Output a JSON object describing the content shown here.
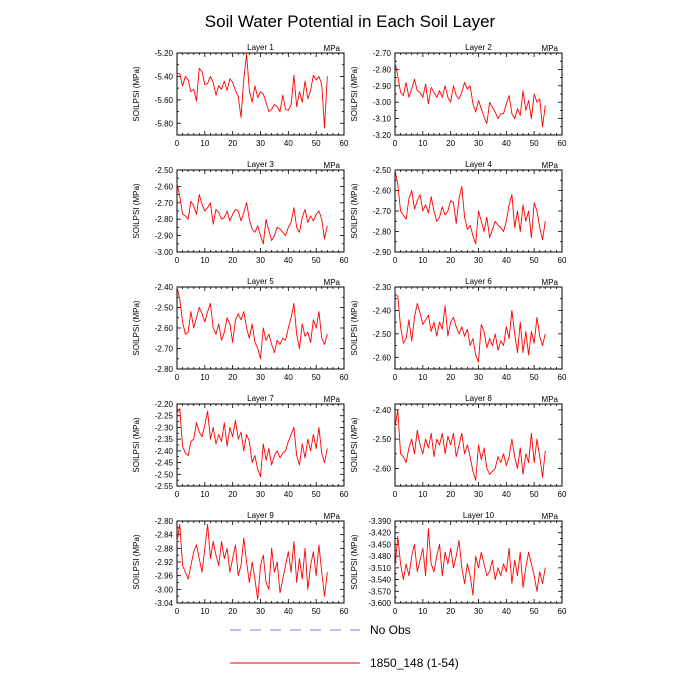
{
  "title": "Soil Water Potential in Each Soil Layer",
  "legend": {
    "items": [
      {
        "label": "No Obs",
        "color": "#8080e0",
        "dashed": true
      },
      {
        "label": "1850_148 (1-54)",
        "color": "#ff0000",
        "dashed": false
      }
    ]
  },
  "colors": {
    "series": "#ff0000",
    "noobs": "#8080e0"
  },
  "chart_data": [
    {
      "type": "line",
      "title": "Layer 1",
      "units": "MPa",
      "ylabel": "SOILPSI  (MPa)",
      "xlim": [
        0,
        60
      ],
      "xticks": [
        0,
        10,
        20,
        30,
        40,
        50,
        60
      ],
      "ylim": [
        -5.9,
        -5.2
      ],
      "yticks": [
        -5.2,
        -5.4,
        -5.6,
        -5.8
      ],
      "ytick_labels": [
        "-5.20",
        "-5.40",
        "-5.60",
        "-5.80"
      ],
      "series": [
        {
          "name": "1850_148 (1-54)",
          "values": [
            -5.37,
            -5.38,
            -5.48,
            -5.4,
            -5.43,
            -5.53,
            -5.51,
            -5.61,
            -5.33,
            -5.36,
            -5.47,
            -5.46,
            -5.4,
            -5.45,
            -5.56,
            -5.48,
            -5.51,
            -5.44,
            -5.52,
            -5.42,
            -5.45,
            -5.52,
            -5.57,
            -5.75,
            -5.42,
            -5.21,
            -5.52,
            -5.62,
            -5.48,
            -5.58,
            -5.53,
            -5.55,
            -5.62,
            -5.7,
            -5.68,
            -5.64,
            -5.66,
            -5.7,
            -5.56,
            -5.68,
            -5.69,
            -5.64,
            -5.39,
            -5.66,
            -5.53,
            -5.62,
            -5.44,
            -5.59,
            -5.52,
            -5.39,
            -5.43,
            -5.4,
            -5.47,
            -5.84,
            -5.4
          ]
        }
      ]
    },
    {
      "type": "line",
      "title": "Layer 2",
      "units": "MPa",
      "ylabel": "SOILPSI  (MPa)",
      "xlim": [
        0,
        60
      ],
      "xticks": [
        0,
        10,
        20,
        30,
        40,
        50,
        60
      ],
      "ylim": [
        -3.2,
        -2.7
      ],
      "yticks": [
        -2.7,
        -2.8,
        -2.9,
        -3.0,
        -3.1,
        -3.2
      ],
      "ytick_labels": [
        "-2.70",
        "-2.80",
        "-2.90",
        "-3.00",
        "-3.10",
        "-3.20"
      ],
      "series": [
        {
          "name": "1850_148 (1-54)",
          "values": [
            -2.76,
            -2.84,
            -2.94,
            -2.96,
            -2.88,
            -2.97,
            -2.92,
            -2.86,
            -2.93,
            -2.94,
            -2.97,
            -2.89,
            -3.01,
            -2.91,
            -2.94,
            -2.97,
            -2.93,
            -2.97,
            -2.9,
            -2.97,
            -3.0,
            -2.9,
            -2.96,
            -2.98,
            -2.94,
            -2.88,
            -2.92,
            -2.9,
            -3.01,
            -3.06,
            -2.99,
            -3.04,
            -3.09,
            -3.13,
            -3.0,
            -3.03,
            -3.06,
            -3.1,
            -3.07,
            -3.07,
            -3.01,
            -2.96,
            -3.07,
            -3.1,
            -3.04,
            -3.08,
            -2.93,
            -3.05,
            -2.99,
            -3.1,
            -2.95,
            -3.0,
            -2.98,
            -3.15,
            -3.02
          ]
        }
      ]
    },
    {
      "type": "line",
      "title": "Layer 3",
      "units": "MPa",
      "ylabel": "SOILPSI  (MPa)",
      "xlim": [
        0,
        60
      ],
      "xticks": [
        0,
        10,
        20,
        30,
        40,
        50,
        60
      ],
      "ylim": [
        -3.0,
        -2.5
      ],
      "yticks": [
        -2.5,
        -2.6,
        -2.7,
        -2.8,
        -2.9,
        -3.0
      ],
      "ytick_labels": [
        "-2.50",
        "-2.60",
        "-2.70",
        "-2.80",
        "-2.90",
        "-3.00"
      ],
      "series": [
        {
          "name": "1850_148 (1-54)",
          "values": [
            -2.58,
            -2.66,
            -2.77,
            -2.78,
            -2.8,
            -2.69,
            -2.72,
            -2.77,
            -2.65,
            -2.71,
            -2.75,
            -2.73,
            -2.7,
            -2.83,
            -2.74,
            -2.76,
            -2.8,
            -2.79,
            -2.75,
            -2.81,
            -2.77,
            -2.74,
            -2.75,
            -2.81,
            -2.76,
            -2.7,
            -2.8,
            -2.86,
            -2.88,
            -2.84,
            -2.9,
            -2.95,
            -2.8,
            -2.87,
            -2.93,
            -2.9,
            -2.85,
            -2.86,
            -2.88,
            -2.9,
            -2.85,
            -2.82,
            -2.73,
            -2.85,
            -2.88,
            -2.79,
            -2.74,
            -2.82,
            -2.78,
            -2.81,
            -2.77,
            -2.75,
            -2.8,
            -2.92,
            -2.84
          ]
        }
      ]
    },
    {
      "type": "line",
      "title": "Layer 4",
      "units": "MPa",
      "ylabel": "SOILPSI  (MPa)",
      "xlim": [
        0,
        60
      ],
      "xticks": [
        0,
        10,
        20,
        30,
        40,
        50,
        60
      ],
      "ylim": [
        -2.9,
        -2.5
      ],
      "yticks": [
        -2.5,
        -2.6,
        -2.7,
        -2.8,
        -2.9
      ],
      "ytick_labels": [
        "-2.50",
        "-2.60",
        "-2.70",
        "-2.80",
        "-2.90"
      ],
      "series": [
        {
          "name": "1850_148 (1-54)",
          "values": [
            -2.5,
            -2.57,
            -2.7,
            -2.72,
            -2.74,
            -2.64,
            -2.6,
            -2.69,
            -2.65,
            -2.62,
            -2.7,
            -2.67,
            -2.71,
            -2.63,
            -2.7,
            -2.75,
            -2.73,
            -2.68,
            -2.72,
            -2.7,
            -2.65,
            -2.66,
            -2.76,
            -2.64,
            -2.58,
            -2.73,
            -2.79,
            -2.77,
            -2.82,
            -2.86,
            -2.7,
            -2.75,
            -2.8,
            -2.73,
            -2.83,
            -2.79,
            -2.75,
            -2.77,
            -2.78,
            -2.8,
            -2.75,
            -2.67,
            -2.62,
            -2.78,
            -2.7,
            -2.8,
            -2.67,
            -2.75,
            -2.7,
            -2.83,
            -2.66,
            -2.7,
            -2.78,
            -2.84,
            -2.75
          ]
        }
      ]
    },
    {
      "type": "line",
      "title": "Layer 5",
      "units": "MPa",
      "ylabel": "SOILPSI  (MPa)",
      "xlim": [
        0,
        60
      ],
      "xticks": [
        0,
        10,
        20,
        30,
        40,
        50,
        60
      ],
      "ylim": [
        -2.8,
        -2.4
      ],
      "yticks": [
        -2.4,
        -2.5,
        -2.6,
        -2.7,
        -2.8
      ],
      "ytick_labels": [
        "-2.40",
        "-2.50",
        "-2.60",
        "-2.70",
        "-2.80"
      ],
      "series": [
        {
          "name": "1850_148 (1-54)",
          "values": [
            -2.4,
            -2.46,
            -2.57,
            -2.63,
            -2.62,
            -2.52,
            -2.6,
            -2.55,
            -2.5,
            -2.53,
            -2.57,
            -2.52,
            -2.48,
            -2.6,
            -2.63,
            -2.58,
            -2.66,
            -2.62,
            -2.55,
            -2.58,
            -2.67,
            -2.56,
            -2.53,
            -2.56,
            -2.52,
            -2.6,
            -2.65,
            -2.58,
            -2.67,
            -2.7,
            -2.75,
            -2.6,
            -2.66,
            -2.63,
            -2.68,
            -2.72,
            -2.66,
            -2.68,
            -2.65,
            -2.66,
            -2.6,
            -2.55,
            -2.48,
            -2.63,
            -2.7,
            -2.58,
            -2.64,
            -2.62,
            -2.67,
            -2.56,
            -2.6,
            -2.52,
            -2.65,
            -2.68,
            -2.63
          ]
        }
      ]
    },
    {
      "type": "line",
      "title": "Layer 6",
      "units": "MPa",
      "ylabel": "SOILPSI  (MPa)",
      "xlim": [
        0,
        60
      ],
      "xticks": [
        0,
        10,
        20,
        30,
        40,
        50,
        60
      ],
      "ylim": [
        -2.65,
        -2.3
      ],
      "yticks": [
        -2.3,
        -2.4,
        -2.5,
        -2.6
      ],
      "ytick_labels": [
        "-2.30",
        "-2.40",
        "-2.50",
        "-2.60"
      ],
      "series": [
        {
          "name": "1850_148 (1-54)",
          "values": [
            -2.33,
            -2.34,
            -2.47,
            -2.54,
            -2.52,
            -2.44,
            -2.53,
            -2.43,
            -2.37,
            -2.41,
            -2.46,
            -2.44,
            -2.42,
            -2.49,
            -2.45,
            -2.51,
            -2.45,
            -2.48,
            -2.38,
            -2.51,
            -2.45,
            -2.43,
            -2.47,
            -2.5,
            -2.47,
            -2.51,
            -2.48,
            -2.55,
            -2.52,
            -2.59,
            -2.62,
            -2.46,
            -2.49,
            -2.56,
            -2.52,
            -2.55,
            -2.5,
            -2.57,
            -2.53,
            -2.55,
            -2.47,
            -2.52,
            -2.4,
            -2.5,
            -2.58,
            -2.45,
            -2.58,
            -2.49,
            -2.59,
            -2.49,
            -2.54,
            -2.43,
            -2.51,
            -2.55,
            -2.5
          ]
        }
      ]
    },
    {
      "type": "line",
      "title": "Layer 7",
      "units": "MPa",
      "ylabel": "SOILPSI  (MPa)",
      "xlim": [
        0,
        60
      ],
      "xticks": [
        0,
        10,
        20,
        30,
        40,
        50,
        60
      ],
      "ylim": [
        -2.55,
        -2.2
      ],
      "yticks": [
        -2.2,
        -2.25,
        -2.3,
        -2.35,
        -2.4,
        -2.45,
        -2.5,
        -2.55
      ],
      "ytick_labels": [
        "-2.20",
        "-2.25",
        "-2.30",
        "-2.35",
        "-2.40",
        "-2.45",
        "-2.50",
        "-2.55"
      ],
      "series": [
        {
          "name": "1850_148 (1-54)",
          "values": [
            -2.24,
            -2.22,
            -2.38,
            -2.41,
            -2.42,
            -2.36,
            -2.35,
            -2.28,
            -2.32,
            -2.34,
            -2.29,
            -2.23,
            -2.35,
            -2.3,
            -2.37,
            -2.33,
            -2.36,
            -2.28,
            -2.38,
            -2.3,
            -2.34,
            -2.27,
            -2.35,
            -2.32,
            -2.4,
            -2.33,
            -2.36,
            -2.45,
            -2.42,
            -2.48,
            -2.51,
            -2.37,
            -2.44,
            -2.39,
            -2.46,
            -2.42,
            -2.4,
            -2.43,
            -2.41,
            -2.4,
            -2.36,
            -2.33,
            -2.3,
            -2.42,
            -2.46,
            -2.37,
            -2.43,
            -2.35,
            -2.4,
            -2.33,
            -2.39,
            -2.3,
            -2.41,
            -2.45,
            -2.39
          ]
        }
      ]
    },
    {
      "type": "line",
      "title": "Layer 8",
      "units": "MPa",
      "ylabel": "SOILPSI  (MPa)",
      "xlim": [
        0,
        60
      ],
      "xticks": [
        0,
        10,
        20,
        30,
        40,
        50,
        60
      ],
      "ylim": [
        -2.66,
        -2.38
      ],
      "yticks": [
        -2.4,
        -2.5,
        -2.6
      ],
      "ytick_labels": [
        "-2.40",
        "-2.50",
        "-2.60"
      ],
      "series": [
        {
          "name": "1850_148 (1-54)",
          "values": [
            -2.46,
            -2.4,
            -2.55,
            -2.56,
            -2.58,
            -2.53,
            -2.5,
            -2.55,
            -2.47,
            -2.52,
            -2.55,
            -2.5,
            -2.53,
            -2.48,
            -2.56,
            -2.5,
            -2.52,
            -2.48,
            -2.55,
            -2.49,
            -2.52,
            -2.48,
            -2.56,
            -2.52,
            -2.48,
            -2.55,
            -2.52,
            -2.56,
            -2.61,
            -2.64,
            -2.52,
            -2.57,
            -2.53,
            -2.6,
            -2.62,
            -2.61,
            -2.6,
            -2.56,
            -2.58,
            -2.55,
            -2.59,
            -2.56,
            -2.5,
            -2.56,
            -2.6,
            -2.53,
            -2.62,
            -2.55,
            -2.58,
            -2.48,
            -2.58,
            -2.5,
            -2.56,
            -2.63,
            -2.54
          ]
        }
      ]
    },
    {
      "type": "line",
      "title": "Layer 9",
      "units": "MPa",
      "ylabel": "SOILPSI  (MPa)",
      "xlim": [
        0,
        60
      ],
      "xticks": [
        0,
        10,
        20,
        30,
        40,
        50,
        60
      ],
      "ylim": [
        -3.04,
        -2.8
      ],
      "yticks": [
        -2.8,
        -2.84,
        -2.88,
        -2.92,
        -2.96,
        -3.0,
        -3.04
      ],
      "ytick_labels": [
        "-2.80",
        "-2.84",
        "-2.88",
        "-2.92",
        "-2.96",
        "-3.00",
        "-3.04"
      ],
      "series": [
        {
          "name": "1850_148 (1-54)",
          "values": [
            -2.86,
            -2.81,
            -2.93,
            -2.95,
            -2.97,
            -2.93,
            -2.89,
            -2.87,
            -2.91,
            -2.95,
            -2.88,
            -2.81,
            -2.91,
            -2.86,
            -2.9,
            -2.93,
            -2.86,
            -2.91,
            -2.88,
            -2.95,
            -2.91,
            -2.87,
            -2.96,
            -2.93,
            -2.85,
            -2.92,
            -2.98,
            -2.92,
            -2.97,
            -3.03,
            -2.93,
            -2.9,
            -2.98,
            -3.0,
            -2.88,
            -2.95,
            -2.92,
            -3.01,
            -2.97,
            -2.93,
            -2.89,
            -2.95,
            -2.86,
            -2.98,
            -2.91,
            -2.97,
            -2.88,
            -3.0,
            -2.93,
            -2.89,
            -2.96,
            -2.87,
            -2.95,
            -3.02,
            -2.95
          ]
        }
      ]
    },
    {
      "type": "line",
      "title": "Layer 10",
      "units": "MPa",
      "ylabel": "SOILPSI  (MPa)",
      "xlim": [
        0,
        60
      ],
      "xticks": [
        0,
        10,
        20,
        30,
        40,
        50,
        60
      ],
      "ylim": [
        -3.6,
        -3.39
      ],
      "yticks": [
        -3.39,
        -3.42,
        -3.45,
        -3.48,
        -3.51,
        -3.54,
        -3.57,
        -3.6
      ],
      "ytick_labels": [
        "-3.390",
        "-3.420",
        "-3.450",
        "-3.480",
        "-3.510",
        "-3.540",
        "-3.570",
        "-3.600"
      ],
      "series": [
        {
          "name": "1850_148 (1-54)",
          "values": [
            -3.51,
            -3.43,
            -3.5,
            -3.54,
            -3.5,
            -3.53,
            -3.48,
            -3.45,
            -3.52,
            -3.49,
            -3.46,
            -3.53,
            -3.41,
            -3.5,
            -3.52,
            -3.48,
            -3.45,
            -3.53,
            -3.47,
            -3.5,
            -3.46,
            -3.51,
            -3.48,
            -3.44,
            -3.51,
            -3.55,
            -3.5,
            -3.53,
            -3.58,
            -3.48,
            -3.51,
            -3.47,
            -3.5,
            -3.53,
            -3.52,
            -3.49,
            -3.54,
            -3.51,
            -3.53,
            -3.5,
            -3.52,
            -3.46,
            -3.55,
            -3.49,
            -3.53,
            -3.47,
            -3.56,
            -3.51,
            -3.47,
            -3.5,
            -3.53,
            -3.57,
            -3.52,
            -3.55,
            -3.51
          ]
        }
      ]
    }
  ]
}
